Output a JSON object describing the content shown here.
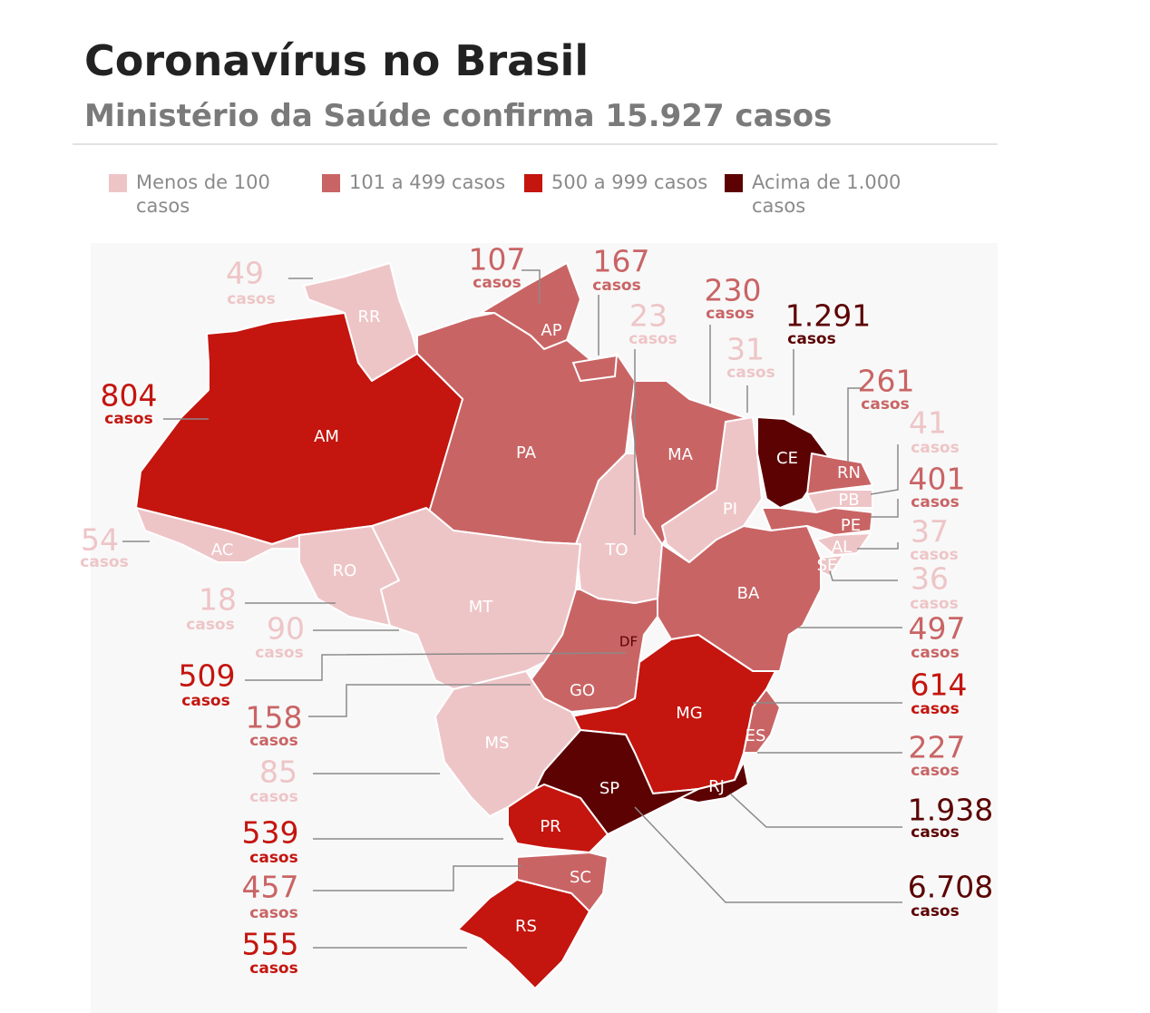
{
  "header": {
    "title": "Coronavírus no Brasil",
    "subtitle": "Ministério da Saúde confirma 15.927 casos"
  },
  "legend": [
    {
      "label": "Menos de 100 casos",
      "color": "#eec5c7"
    },
    {
      "label": "101 a 499 casos",
      "color": "#c96465"
    },
    {
      "label": "500 a 999 casos",
      "color": "#c4150f"
    },
    {
      "label": "Acima de 1.000 casos",
      "color": "#5c0202"
    }
  ],
  "unit": "casos",
  "states": [
    {
      "abbr": "RR",
      "count": "49",
      "level": 0
    },
    {
      "abbr": "AP",
      "count": "107",
      "level": 1
    },
    {
      "abbr": "PA",
      "count": "167",
      "level": 1
    },
    {
      "abbr": "TO",
      "count": "23",
      "level": 0
    },
    {
      "abbr": "MA",
      "count": "230",
      "level": 1
    },
    {
      "abbr": "PI",
      "count": "31",
      "level": 0
    },
    {
      "abbr": "CE",
      "count": "1.291",
      "level": 3
    },
    {
      "abbr": "RN",
      "count": "261",
      "level": 1
    },
    {
      "abbr": "PB",
      "count": "41",
      "level": 0
    },
    {
      "abbr": "PE",
      "count": "401",
      "level": 1
    },
    {
      "abbr": "AL",
      "count": "37",
      "level": 0
    },
    {
      "abbr": "SE",
      "count": "36",
      "level": 0
    },
    {
      "abbr": "BA",
      "count": "497",
      "level": 1
    },
    {
      "abbr": "MG",
      "count": "614",
      "level": 2
    },
    {
      "abbr": "ES",
      "count": "227",
      "level": 1
    },
    {
      "abbr": "RJ",
      "count": "1.938",
      "level": 3
    },
    {
      "abbr": "SP",
      "count": "6.708",
      "level": 3
    },
    {
      "abbr": "AM",
      "count": "804",
      "level": 2
    },
    {
      "abbr": "AC",
      "count": "54",
      "level": 0
    },
    {
      "abbr": "RO",
      "count": "18",
      "level": 0
    },
    {
      "abbr": "MT",
      "count": "90",
      "level": 0
    },
    {
      "abbr": "DF",
      "count": "509",
      "level": 2
    },
    {
      "abbr": "GO",
      "count": "158",
      "level": 1
    },
    {
      "abbr": "MS",
      "count": "85",
      "level": 0
    },
    {
      "abbr": "PR",
      "count": "539",
      "level": 2
    },
    {
      "abbr": "SC",
      "count": "457",
      "level": 1
    },
    {
      "abbr": "RS",
      "count": "555",
      "level": 2
    }
  ]
}
